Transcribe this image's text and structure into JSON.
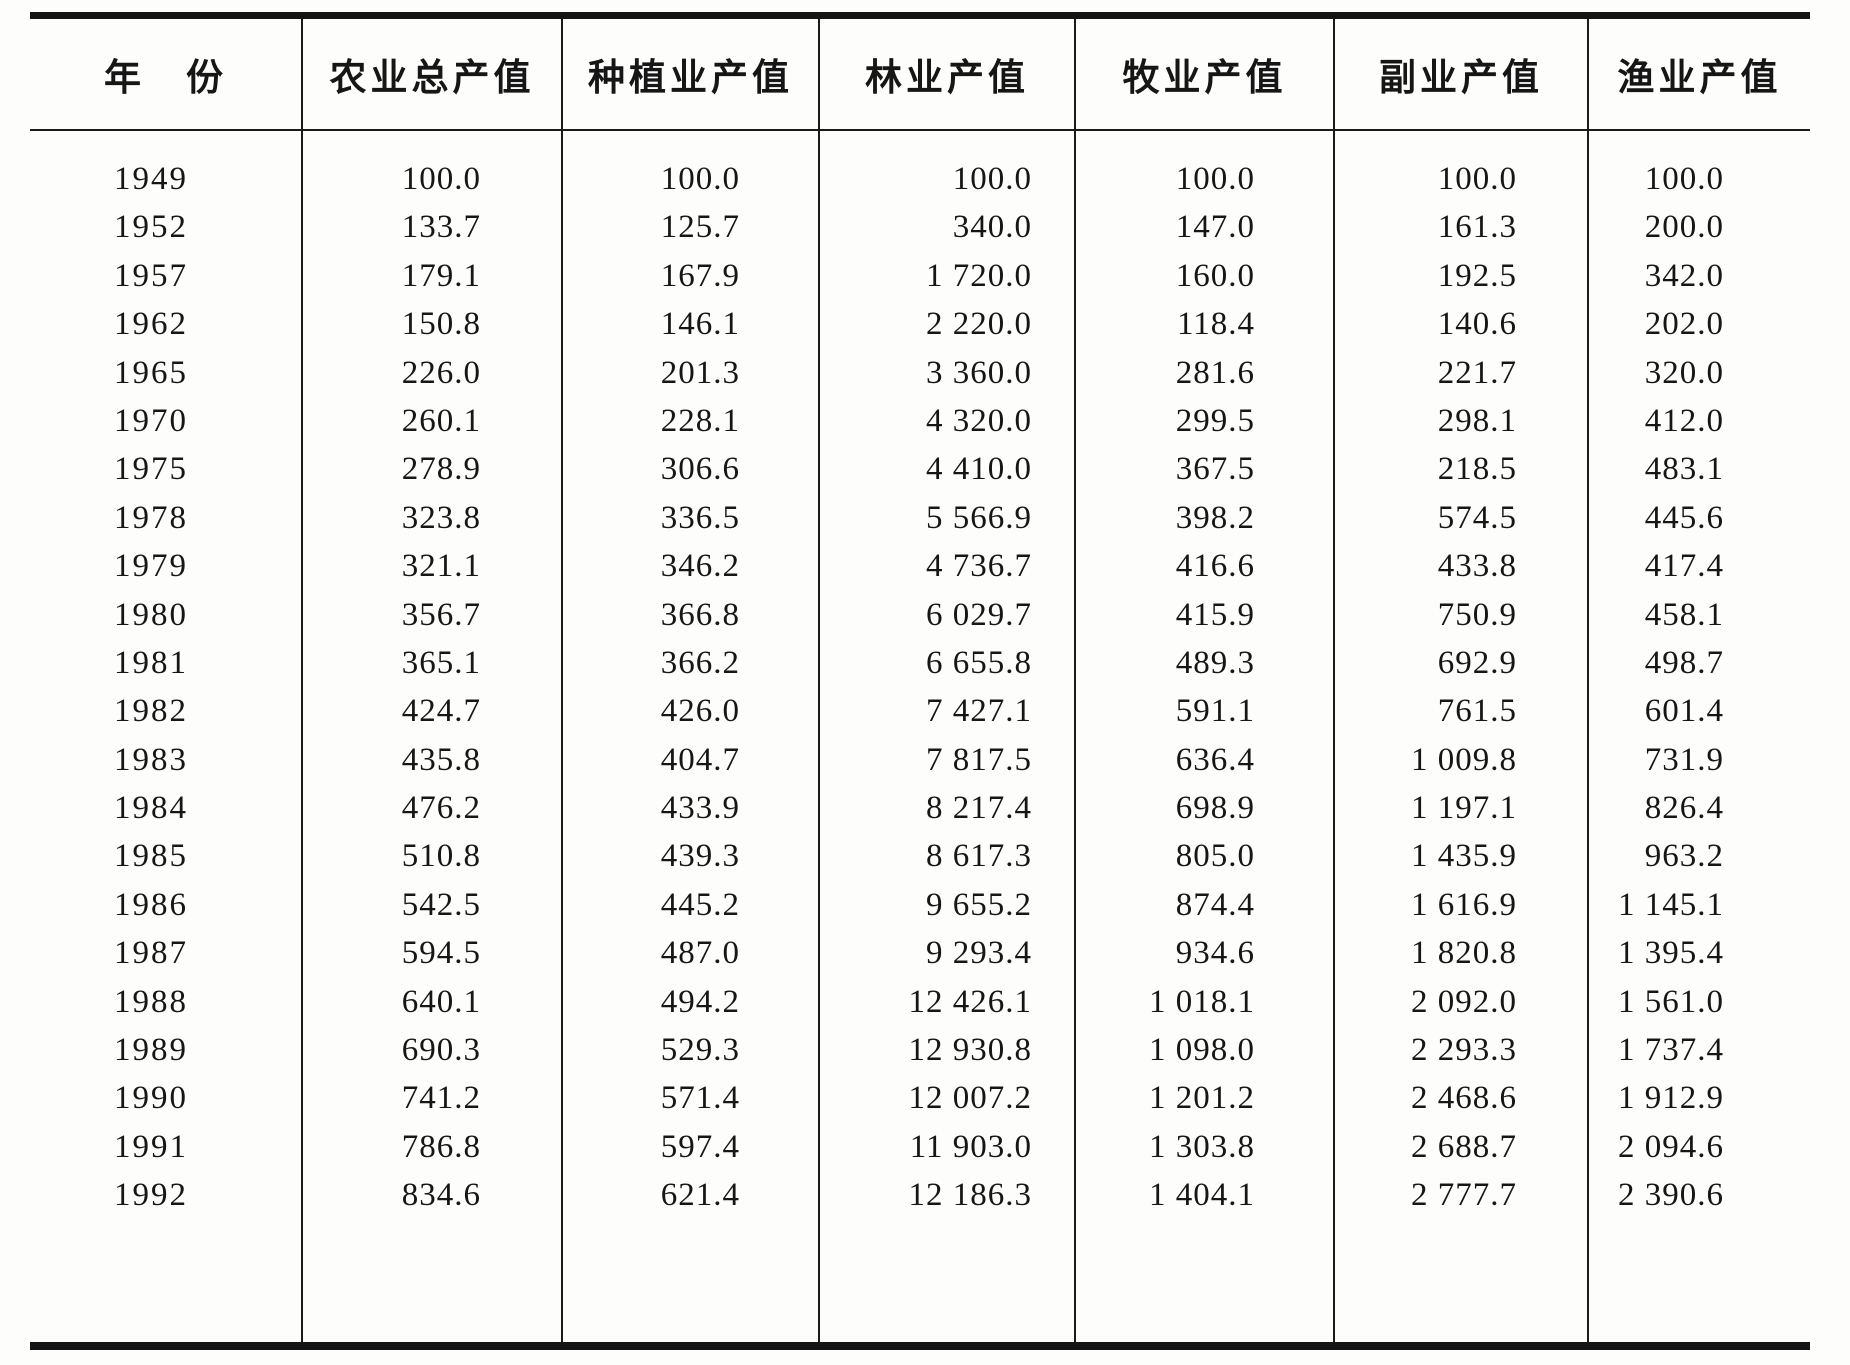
{
  "table": {
    "columns": [
      "年　份",
      "农业总产值",
      "种植业产值",
      "林业产值",
      "牧业产值",
      "副业产值",
      "渔业产值"
    ],
    "rows": [
      {
        "year": "1949",
        "values": [
          "100.0",
          "100.0",
          "100.0",
          "100.0",
          "100.0",
          "100.0"
        ]
      },
      {
        "year": "1952",
        "values": [
          "133.7",
          "125.7",
          "340.0",
          "147.0",
          "161.3",
          "200.0"
        ]
      },
      {
        "year": "1957",
        "values": [
          "179.1",
          "167.9",
          "1 720.0",
          "160.0",
          "192.5",
          "342.0"
        ]
      },
      {
        "year": "1962",
        "values": [
          "150.8",
          "146.1",
          "2 220.0",
          "118.4",
          "140.6",
          "202.0"
        ]
      },
      {
        "year": "1965",
        "values": [
          "226.0",
          "201.3",
          "3 360.0",
          "281.6",
          "221.7",
          "320.0"
        ]
      },
      {
        "year": "1970",
        "values": [
          "260.1",
          "228.1",
          "4 320.0",
          "299.5",
          "298.1",
          "412.0"
        ]
      },
      {
        "year": "1975",
        "values": [
          "278.9",
          "306.6",
          "4 410.0",
          "367.5",
          "218.5",
          "483.1"
        ]
      },
      {
        "year": "1978",
        "values": [
          "323.8",
          "336.5",
          "5 566.9",
          "398.2",
          "574.5",
          "445.6"
        ]
      },
      {
        "year": "1979",
        "values": [
          "321.1",
          "346.2",
          "4 736.7",
          "416.6",
          "433.8",
          "417.4"
        ]
      },
      {
        "year": "1980",
        "values": [
          "356.7",
          "366.8",
          "6 029.7",
          "415.9",
          "750.9",
          "458.1"
        ]
      },
      {
        "year": "1981",
        "values": [
          "365.1",
          "366.2",
          "6 655.8",
          "489.3",
          "692.9",
          "498.7"
        ]
      },
      {
        "year": "1982",
        "values": [
          "424.7",
          "426.0",
          "7 427.1",
          "591.1",
          "761.5",
          "601.4"
        ]
      },
      {
        "year": "1983",
        "values": [
          "435.8",
          "404.7",
          "7 817.5",
          "636.4",
          "1 009.8",
          "731.9"
        ]
      },
      {
        "year": "1984",
        "values": [
          "476.2",
          "433.9",
          "8 217.4",
          "698.9",
          "1 197.1",
          "826.4"
        ]
      },
      {
        "year": "1985",
        "values": [
          "510.8",
          "439.3",
          "8 617.3",
          "805.0",
          "1 435.9",
          "963.2"
        ]
      },
      {
        "year": "1986",
        "values": [
          "542.5",
          "445.2",
          "9 655.2",
          "874.4",
          "1 616.9",
          "1 145.1"
        ]
      },
      {
        "year": "1987",
        "values": [
          "594.5",
          "487.0",
          "9 293.4",
          "934.6",
          "1 820.8",
          "1 395.4"
        ]
      },
      {
        "year": "1988",
        "values": [
          "640.1",
          "494.2",
          "12 426.1",
          "1 018.1",
          "2 092.0",
          "1 561.0"
        ]
      },
      {
        "year": "1989",
        "values": [
          "690.3",
          "529.3",
          "12 930.8",
          "1 098.0",
          "2 293.3",
          "1 737.4"
        ]
      },
      {
        "year": "1990",
        "values": [
          "741.2",
          "571.4",
          "12 007.2",
          "1 201.2",
          "2 468.6",
          "1 912.9"
        ]
      },
      {
        "year": "1991",
        "values": [
          "786.8",
          "597.4",
          "11 903.0",
          "1 303.8",
          "2 688.7",
          "2 094.6"
        ]
      },
      {
        "year": "1992",
        "values": [
          "834.6",
          "621.4",
          "12 186.3",
          "1 404.1",
          "2 777.7",
          "2 390.6"
        ]
      }
    ]
  }
}
